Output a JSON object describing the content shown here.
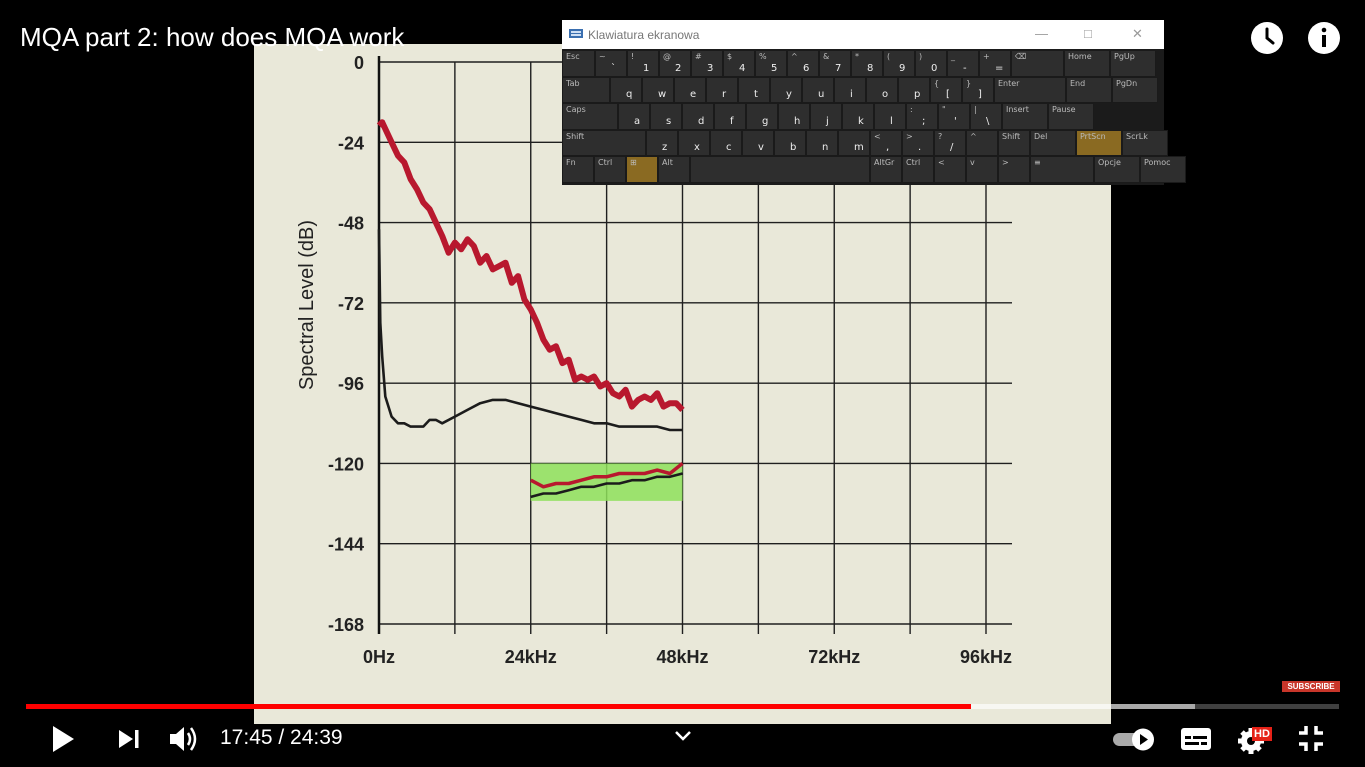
{
  "video": {
    "title": "MQA part 2: how does MQA work",
    "current_time": "17:45",
    "duration": "24:39",
    "time_display": "17:45 / 24:39",
    "played_fraction": 0.72,
    "buffered_fraction": 0.89,
    "subscribe_label": "SUBSCRIBE",
    "quality_badge": "HD"
  },
  "top_icons": [
    "clock-icon",
    "info-icon"
  ],
  "controls": [
    "play-icon",
    "next-icon",
    "volume-icon",
    "chevron-down-icon",
    "autoplay-toggle-icon",
    "subtitles-icon",
    "settings-icon",
    "exit-fullscreen-icon"
  ],
  "keyboard": {
    "title": "Klawiatura ekranowa",
    "rows": [
      [
        [
          "Esc",
          ""
        ],
        [
          "~",
          "`"
        ],
        [
          "!",
          "1"
        ],
        [
          "@",
          "2"
        ],
        [
          "#",
          "3"
        ],
        [
          "$",
          "4"
        ],
        [
          "%",
          "5"
        ],
        [
          "^",
          "6"
        ],
        [
          "&",
          "7"
        ],
        [
          "*",
          "8"
        ],
        [
          "(",
          "9"
        ],
        [
          ")",
          "0"
        ],
        [
          "_",
          "-"
        ],
        [
          "+",
          "="
        ],
        [
          "⌫",
          ""
        ],
        [
          "Home",
          ""
        ],
        [
          "PgUp",
          ""
        ]
      ],
      [
        [
          "Tab",
          ""
        ],
        [
          "",
          "q"
        ],
        [
          "",
          "w"
        ],
        [
          "",
          "e"
        ],
        [
          "",
          "r"
        ],
        [
          "",
          "t"
        ],
        [
          "",
          "y"
        ],
        [
          "",
          "u"
        ],
        [
          "",
          "i"
        ],
        [
          "",
          "o"
        ],
        [
          "",
          "p"
        ],
        [
          "{",
          "["
        ],
        [
          "}",
          "]"
        ],
        [
          "Enter",
          ""
        ],
        [
          "End",
          ""
        ],
        [
          "PgDn",
          ""
        ]
      ],
      [
        [
          "Caps",
          ""
        ],
        [
          "",
          "a"
        ],
        [
          "",
          "s"
        ],
        [
          "",
          "d"
        ],
        [
          "",
          "f"
        ],
        [
          "",
          "g"
        ],
        [
          "",
          "h"
        ],
        [
          "",
          "j"
        ],
        [
          "",
          "k"
        ],
        [
          "",
          "l"
        ],
        [
          ":",
          ";"
        ],
        [
          "\"",
          "'"
        ],
        [
          "|",
          "\\"
        ],
        [
          "Insert",
          ""
        ],
        [
          "Pause",
          ""
        ]
      ],
      [
        [
          "Shift",
          ""
        ],
        [
          "",
          "z"
        ],
        [
          "",
          "x"
        ],
        [
          "",
          "c"
        ],
        [
          "",
          "v"
        ],
        [
          "",
          "b"
        ],
        [
          "",
          "n"
        ],
        [
          "",
          "m"
        ],
        [
          "<",
          ","
        ],
        [
          ">",
          "."
        ],
        [
          "?",
          "/"
        ],
        [
          "^",
          ""
        ],
        [
          "Shift",
          ""
        ],
        [
          "Del",
          ""
        ],
        [
          "PrtScn",
          ""
        ],
        [
          "ScrLk",
          ""
        ]
      ],
      [
        [
          "Fn",
          ""
        ],
        [
          "Ctrl",
          ""
        ],
        [
          "⊞",
          ""
        ],
        [
          "Alt",
          ""
        ],
        [
          "",
          ""
        ],
        [
          "AltGr",
          ""
        ],
        [
          "Ctrl",
          ""
        ],
        [
          "<",
          ""
        ],
        [
          "v",
          ""
        ],
        [
          ">",
          ""
        ],
        [
          "≡",
          ""
        ],
        [
          "Opcje",
          ""
        ],
        [
          "Pomoc",
          ""
        ]
      ]
    ]
  },
  "chart_data": {
    "type": "line",
    "xlabel": "",
    "ylabel": "Spectral Level (dB)",
    "x_ticks": [
      "0Hz",
      "24kHz",
      "48kHz",
      "72kHz",
      "96kHz"
    ],
    "y_ticks": [
      "0",
      "-24",
      "-48",
      "-72",
      "-96",
      "-120",
      "-144",
      "-168"
    ],
    "xlim": [
      0,
      96
    ],
    "ylim": [
      -168,
      0
    ],
    "grid": true,
    "colors": {
      "red": "#b8182e",
      "black": "#1c1c1c",
      "highlight": "#8ee05a",
      "background": "#e9e8d9"
    },
    "highlight_region": {
      "x": [
        24,
        48
      ],
      "y": [
        -130,
        -120
      ]
    },
    "series": [
      {
        "color": "red",
        "x": [
          0,
          0.5,
          1,
          2,
          3,
          4,
          5,
          6,
          7,
          8,
          9,
          10,
          11,
          12,
          13,
          14,
          15,
          16,
          17,
          18,
          19,
          20,
          21,
          22,
          23,
          24,
          25,
          26,
          27,
          28,
          29,
          30,
          31,
          32,
          33,
          34,
          35,
          36,
          37,
          38,
          39,
          40,
          41,
          42,
          43,
          44,
          45,
          46,
          47,
          48
        ],
        "y": [
          -19,
          -18,
          -20,
          -24,
          -28,
          -30,
          -35,
          -38,
          -42,
          -44,
          -48,
          -52,
          -57,
          -54,
          -56,
          -53,
          -55,
          -60,
          -58,
          -62,
          -61,
          -60,
          -66,
          -64,
          -71,
          -74,
          -78,
          -83,
          -86,
          -85,
          -90,
          -89,
          -95,
          -94,
          -95,
          -94,
          -97,
          -96,
          -99,
          -100,
          -98,
          -103,
          -101,
          -100,
          -101,
          -99,
          -103,
          -102,
          -102,
          -104
        ]
      },
      {
        "color": "black",
        "x": [
          0,
          0.2,
          0.5,
          1,
          2,
          3,
          4,
          5,
          6,
          7,
          8,
          9,
          10,
          12,
          14,
          16,
          18,
          20,
          22,
          24,
          26,
          28,
          30,
          32,
          34,
          36,
          38,
          40,
          42,
          44,
          46,
          48
        ],
        "y": [
          -50,
          -78,
          -88,
          -100,
          -106,
          -108,
          -108,
          -109,
          -109,
          -109,
          -107,
          -107,
          -108,
          -106,
          -104,
          -102,
          -101,
          -101,
          -102,
          -103,
          -104,
          -105,
          -106,
          -107,
          -108,
          -108,
          -109,
          -109,
          -109,
          -109,
          -110,
          -110
        ]
      },
      {
        "color": "red",
        "x": [
          24,
          26,
          28,
          30,
          32,
          34,
          36,
          38,
          40,
          42,
          44,
          46,
          48
        ],
        "y": [
          -125,
          -127,
          -126,
          -126,
          -125,
          -124,
          -124,
          -123,
          -123,
          -123,
          -122,
          -123,
          -120
        ]
      },
      {
        "color": "black",
        "x": [
          24,
          26,
          28,
          30,
          32,
          34,
          36,
          38,
          40,
          42,
          44,
          46,
          48
        ],
        "y": [
          -130,
          -129,
          -129,
          -128,
          -127,
          -127,
          -126,
          -126,
          -125,
          -125,
          -124,
          -124,
          -123
        ]
      }
    ]
  }
}
